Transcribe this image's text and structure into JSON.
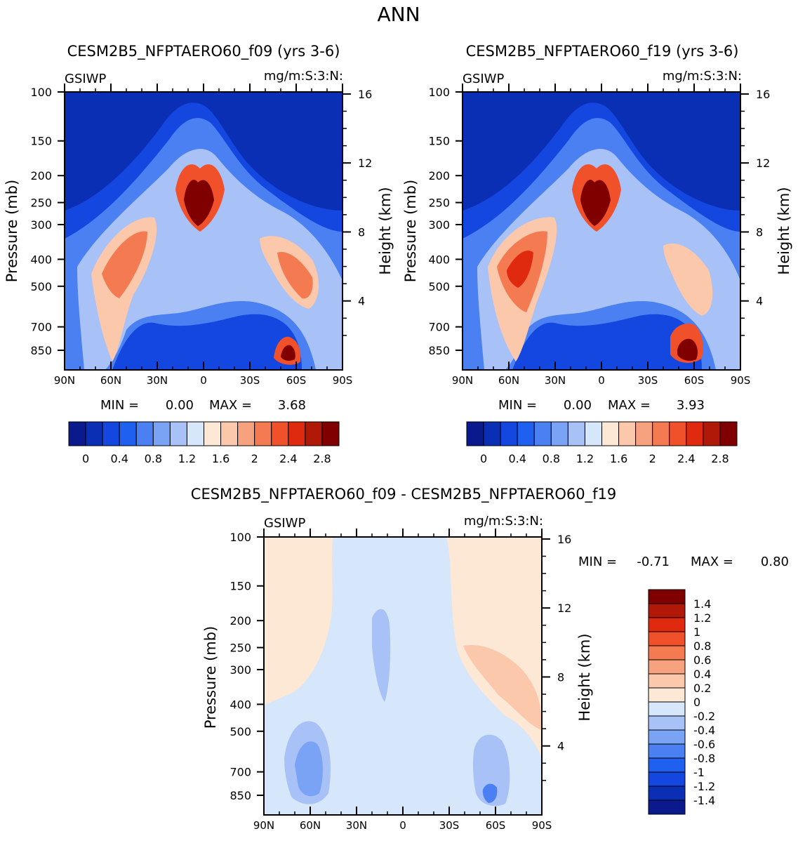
{
  "page_title": "ANN",
  "chart_data": [
    {
      "type": "contour",
      "title": "CESM2B5_NFPTAERO60_f09 (yrs 3-6)",
      "variable": "GSIWP",
      "units": "mg/m:S:3:N:",
      "xlabel": "",
      "ylabel": "Pressure (mb)",
      "y2label": "Height (km)",
      "x_ticks": [
        "90N",
        "60N",
        "30N",
        "0",
        "30S",
        "60S",
        "90S"
      ],
      "x_values": [
        -90,
        -60,
        -30,
        0,
        30,
        60,
        90
      ],
      "y_ticks": [
        "100",
        "150",
        "200",
        "250",
        "300",
        "400",
        "500",
        "700",
        "850"
      ],
      "y_values": [
        100,
        150,
        200,
        250,
        300,
        400,
        500,
        700,
        850
      ],
      "y2_ticks": [
        "16",
        "12",
        "8",
        "4"
      ],
      "y2_values": [
        16,
        12,
        8,
        4
      ],
      "ylim": [
        100,
        1000
      ],
      "min_label": "MIN =",
      "min_value": "0.00",
      "max_label": "MAX =",
      "max_value": "3.68",
      "colorbar_labels": [
        "0",
        "0.4",
        "0.8",
        "1.2",
        "1.6",
        "2",
        "2.4",
        "2.8"
      ],
      "colors": [
        "#0a1a8c",
        "#0a2fb5",
        "#1446e0",
        "#2060f0",
        "#4a80f2",
        "#7aa2f5",
        "#a8c2f7",
        "#d6e6fb",
        "#fde8d6",
        "#fbc8ac",
        "#f7a27e",
        "#f47a52",
        "#f0502a",
        "#e02a10",
        "#b01808",
        "#800000"
      ]
    },
    {
      "type": "contour",
      "title": "CESM2B5_NFPTAERO60_f19 (yrs 3-6)",
      "variable": "GSIWP",
      "units": "mg/m:S:3:N:",
      "xlabel": "",
      "ylabel": "Pressure (mb)",
      "y2label": "Height (km)",
      "x_ticks": [
        "90N",
        "60N",
        "30N",
        "0",
        "30S",
        "60S",
        "90S"
      ],
      "x_values": [
        -90,
        -60,
        -30,
        0,
        30,
        60,
        90
      ],
      "y_ticks": [
        "100",
        "150",
        "200",
        "250",
        "300",
        "400",
        "500",
        "700",
        "850"
      ],
      "y_values": [
        100,
        150,
        200,
        250,
        300,
        400,
        500,
        700,
        850
      ],
      "y2_ticks": [
        "16",
        "12",
        "8",
        "4"
      ],
      "y2_values": [
        16,
        12,
        8,
        4
      ],
      "ylim": [
        100,
        1000
      ],
      "min_label": "MIN =",
      "min_value": "0.00",
      "max_label": "MAX =",
      "max_value": "3.93",
      "colorbar_labels": [
        "0",
        "0.4",
        "0.8",
        "1.2",
        "1.6",
        "2",
        "2.4",
        "2.8"
      ],
      "colors": [
        "#0a1a8c",
        "#0a2fb5",
        "#1446e0",
        "#2060f0",
        "#4a80f2",
        "#7aa2f5",
        "#a8c2f7",
        "#d6e6fb",
        "#fde8d6",
        "#fbc8ac",
        "#f7a27e",
        "#f47a52",
        "#f0502a",
        "#e02a10",
        "#b01808",
        "#800000"
      ]
    },
    {
      "type": "contour",
      "title": "CESM2B5_NFPTAERO60_f09 - CESM2B5_NFPTAERO60_f19",
      "variable": "GSIWP",
      "units": "mg/m:S:3:N:",
      "xlabel": "",
      "ylabel": "Pressure (mb)",
      "y2label": "Height (km)",
      "x_ticks": [
        "90N",
        "60N",
        "30N",
        "0",
        "30S",
        "60S",
        "90S"
      ],
      "x_values": [
        -90,
        -60,
        -30,
        0,
        30,
        60,
        90
      ],
      "y_ticks": [
        "100",
        "150",
        "200",
        "250",
        "300",
        "400",
        "500",
        "700",
        "850"
      ],
      "y_values": [
        100,
        150,
        200,
        250,
        300,
        400,
        500,
        700,
        850
      ],
      "y2_ticks": [
        "16",
        "12",
        "8",
        "4"
      ],
      "y2_values": [
        16,
        12,
        8,
        4
      ],
      "ylim": [
        100,
        1000
      ],
      "min_label": "MIN =",
      "min_value": "-0.71",
      "max_label": "MAX =",
      "max_value": "0.80",
      "colorbar_labels": [
        "1.4",
        "1.2",
        "1",
        "0.8",
        "0.6",
        "0.4",
        "0.2",
        "0",
        "-0.2",
        "-0.4",
        "-0.6",
        "-0.8",
        "-1",
        "-1.2",
        "-1.4"
      ],
      "colors": [
        "#800000",
        "#b01808",
        "#e02a10",
        "#f0502a",
        "#f47a52",
        "#f7a27e",
        "#fbc8ac",
        "#fde8d6",
        "#d6e6fb",
        "#a8c2f7",
        "#7aa2f5",
        "#4a80f2",
        "#2060f0",
        "#1446e0",
        "#0a2fb5",
        "#0a1a8c"
      ]
    }
  ]
}
